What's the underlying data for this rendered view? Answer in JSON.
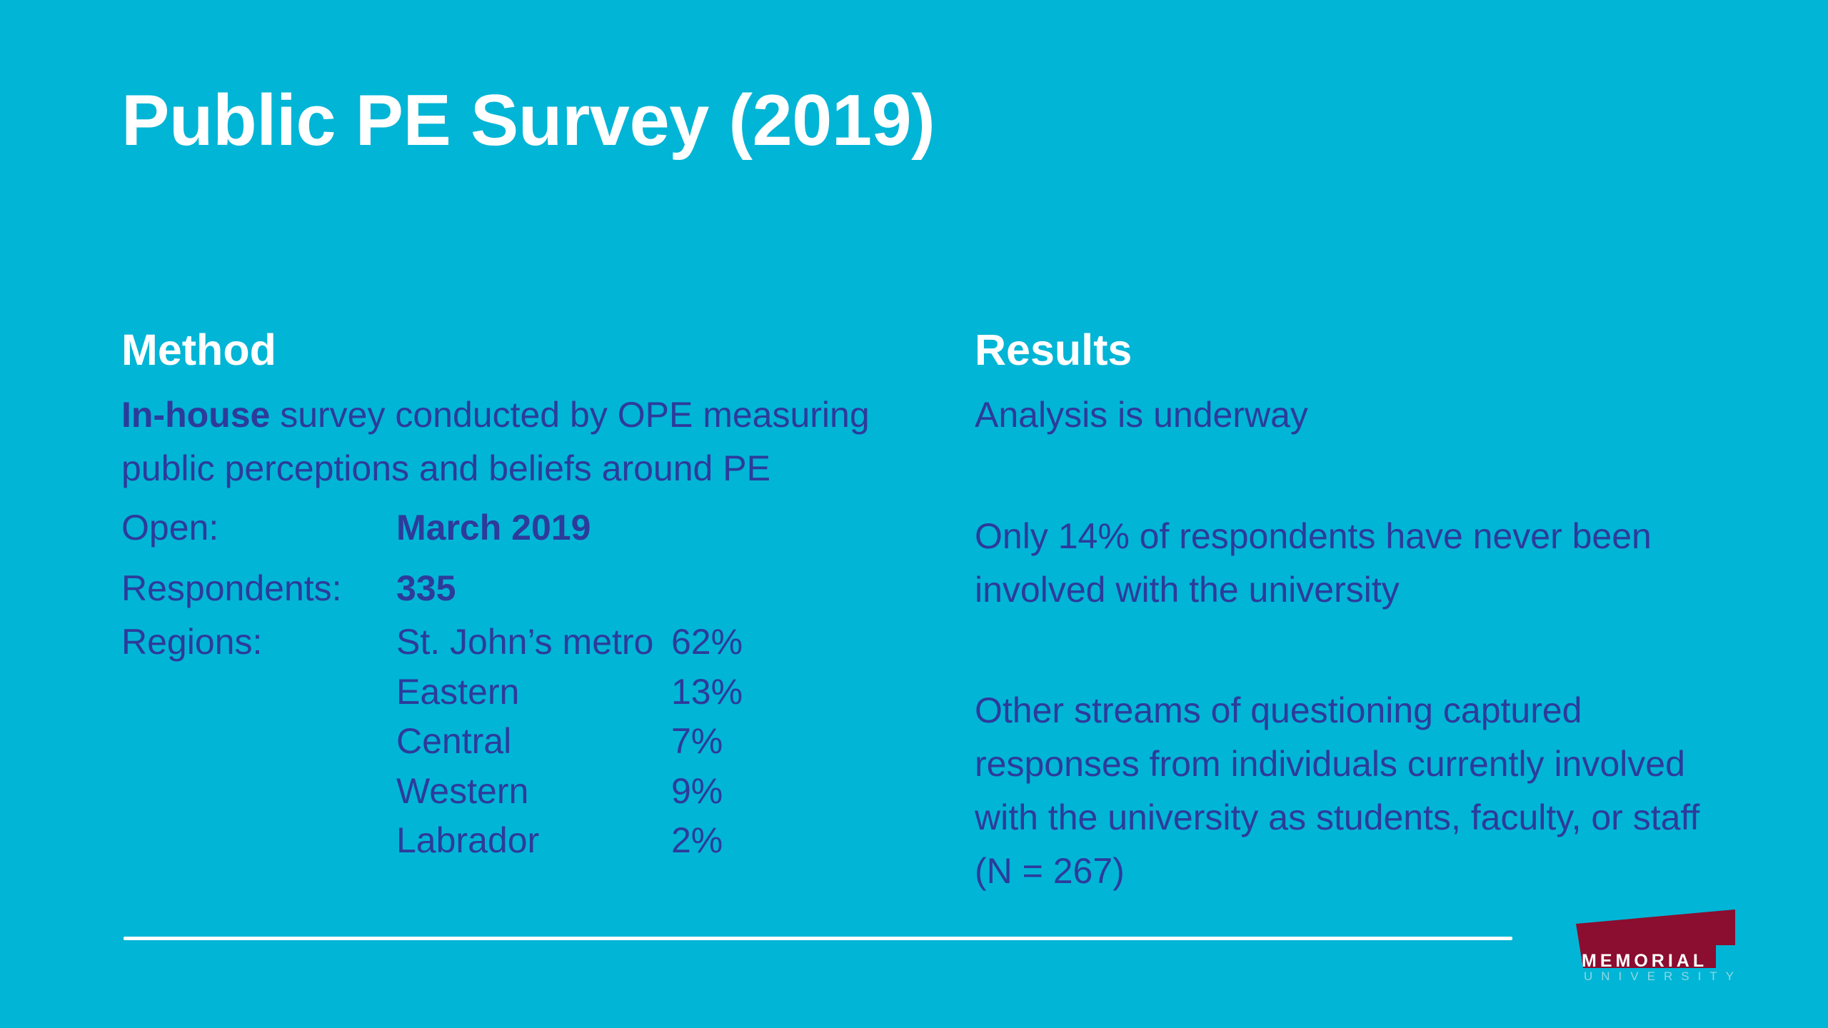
{
  "title": "Public PE Survey (2019)",
  "method": {
    "heading": "Method",
    "intro_bold": "In-house",
    "intro_rest": " survey conducted by OPE measuring public perceptions and beliefs around PE",
    "open_label": "Open:",
    "open_value": "March 2019",
    "respondents_label": "Respondents:",
    "respondents_value": "335",
    "regions_label": "Regions:",
    "regions": [
      {
        "name": "St. John’s metro",
        "pct": "62%"
      },
      {
        "name": "Eastern",
        "pct": "13%"
      },
      {
        "name": "Central",
        "pct": "7%"
      },
      {
        "name": "Western",
        "pct": "9%"
      },
      {
        "name": "Labrador",
        "pct": "2%"
      }
    ]
  },
  "results": {
    "heading": "Results",
    "items": [
      "Analysis is underway",
      "Only 14% of respondents have never been involved with the university",
      "Other streams of questioning captured responses from individuals currently involved with the university as students, faculty, or staff (N = 267)"
    ]
  },
  "logo": {
    "word": "MEMORIAL",
    "sub": "UNIVERSITY",
    "color": "#8b0d2f"
  },
  "colors": {
    "background": "#01b5d6",
    "body_text": "#2d3b9b",
    "heading": "#ffffff"
  }
}
